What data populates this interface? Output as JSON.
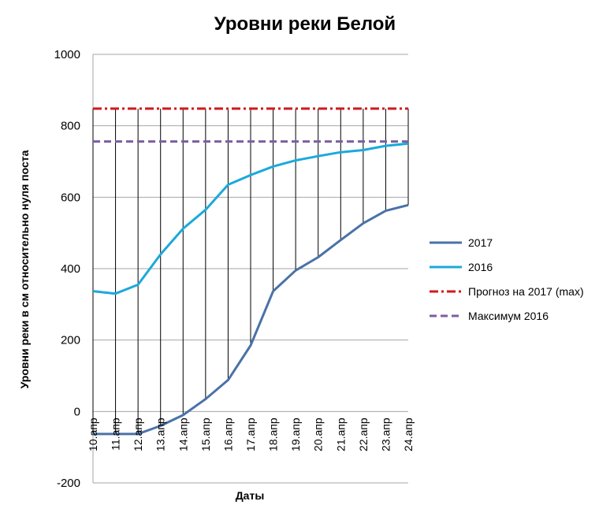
{
  "chart_data": {
    "type": "line",
    "title": "Уровни реки Белой",
    "xlabel": "Даты",
    "ylabel": "Уровни реки в см относительно нуля поста",
    "categories": [
      "10.апр",
      "11.апр",
      "12.апр",
      "13.апр",
      "14.апр",
      "15.апр",
      "16.апр",
      "17.апр",
      "18.апр",
      "19.апр",
      "20.апр",
      "21.апр",
      "22.апр",
      "23.апр",
      "24.апр"
    ],
    "ylim": [
      -200,
      1000
    ],
    "yticks": [
      -200,
      0,
      200,
      400,
      600,
      800,
      1000
    ],
    "grid": true,
    "legend_position": "right",
    "series": [
      {
        "name": "2017",
        "color": "#4a72a8",
        "style": "solid",
        "values": [
          -63,
          -63,
          -63,
          -40,
          -10,
          35,
          88,
          185,
          337,
          395,
          432,
          480,
          527,
          562,
          578
        ]
      },
      {
        "name": "2016",
        "color": "#1ba9dc",
        "style": "solid",
        "values": [
          337,
          330,
          355,
          440,
          512,
          565,
          635,
          662,
          686,
          703,
          715,
          726,
          732,
          744,
          750
        ]
      },
      {
        "name": "Прогноз на 2017 (max)",
        "color": "#d0191e",
        "style": "dashdot",
        "values": [
          848,
          848,
          848,
          848,
          848,
          848,
          848,
          848,
          848,
          848,
          848,
          848,
          848,
          848,
          848
        ]
      },
      {
        "name": "Максимум 2016",
        "color": "#7b5fa1",
        "style": "dashed",
        "values": [
          756,
          756,
          756,
          756,
          756,
          756,
          756,
          756,
          756,
          756,
          756,
          756,
          756,
          756,
          756
        ]
      }
    ]
  }
}
